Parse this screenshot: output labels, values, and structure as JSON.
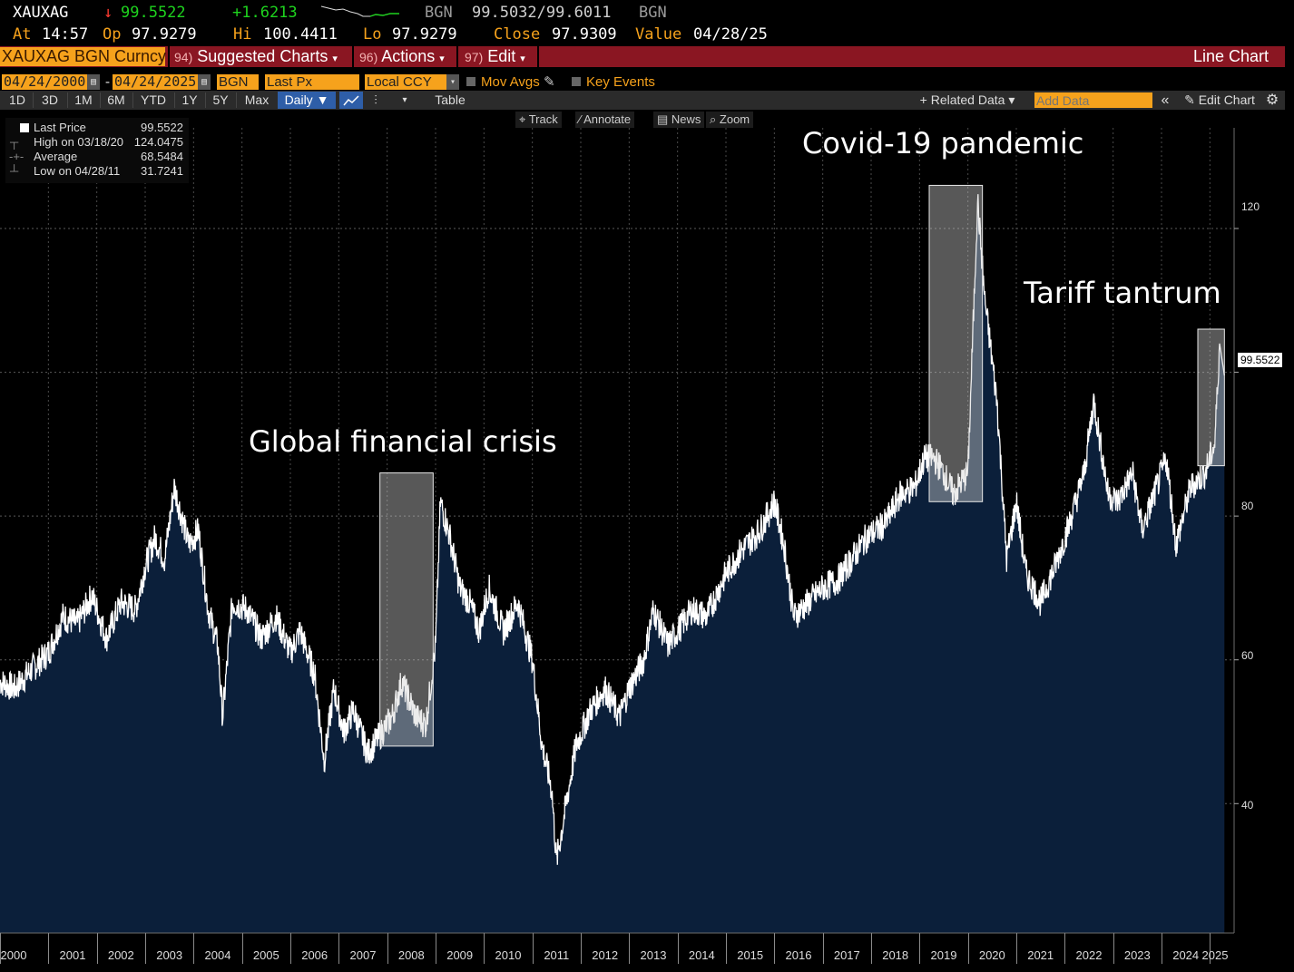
{
  "quote": {
    "ticker": "XAUXAG",
    "arrow": "↓",
    "last": "99.5522",
    "change": "+1.6213",
    "source1": "BGN",
    "bid_ask": "99.5032/99.6011",
    "source2": "BGN",
    "at_label": "At",
    "time": "14:57",
    "open_label": "Op",
    "open": "97.9279",
    "hi_label": "Hi",
    "hi": "100.4411",
    "lo_label": "Lo",
    "lo": "97.9279",
    "close_label": "Close",
    "close": "97.9309",
    "value_label": "Value",
    "value_date": "04/28/25"
  },
  "menubar": {
    "security": "XAUXAG BGN Curncy",
    "suggested_num": "94)",
    "suggested": "Suggested Charts",
    "actions_num": "96)",
    "actions": "Actions",
    "edit_num": "97)",
    "edit": "Edit",
    "chart_type": "Line Chart"
  },
  "controls": {
    "start_date": "04/24/2000",
    "dash": "-",
    "end_date": "04/24/2025",
    "source": "BGN",
    "field": "Last Px",
    "currency": "Local CCY",
    "mov_avgs": "Mov Avgs",
    "key_events": "Key Events"
  },
  "periods": [
    "1D",
    "3D",
    "1M",
    "6M",
    "YTD",
    "1Y",
    "5Y",
    "Max"
  ],
  "frequency": "Daily ▼",
  "table_label": "Table",
  "related_data": "+ Related Data ▾",
  "add_data_placeholder": "Add Data",
  "edit_chart": "Edit Chart",
  "tools": {
    "track": "Track",
    "annotate": "Annotate",
    "news": "News",
    "zoom": "Zoom"
  },
  "legend": {
    "last_label": "Last Price",
    "last_value": "99.5522",
    "high_label": "High on 03/18/20",
    "high_value": "124.0475",
    "avg_label": "Average",
    "avg_value": "68.5484",
    "low_label": "Low on 04/28/11",
    "low_value": "31.7241"
  },
  "colors": {
    "area": "#0b1f3a",
    "line": "#ffffff",
    "accent": "#f6a21c",
    "bar": "#8a1622"
  },
  "chart_data": {
    "type": "area",
    "title": "XAUXAG BGN Curncy",
    "ylim": [
      22,
      134
    ],
    "yticks": [
      40,
      60,
      80,
      120
    ],
    "last_price_label": "99.5522",
    "x_years": [
      "2000",
      "2001",
      "2002",
      "2003",
      "2004",
      "2005",
      "2006",
      "2007",
      "2008",
      "2009",
      "2010",
      "2011",
      "2012",
      "2013",
      "2014",
      "2015",
      "2016",
      "2017",
      "2018",
      "2019",
      "2020",
      "2021",
      "2022",
      "2023",
      "2024",
      "2025"
    ],
    "series": [
      {
        "name": "Last Price",
        "points": [
          [
            2000.0,
            57
          ],
          [
            2000.3,
            56
          ],
          [
            2000.7,
            59
          ],
          [
            2001.0,
            61
          ],
          [
            2001.3,
            66
          ],
          [
            2001.6,
            65
          ],
          [
            2001.9,
            69
          ],
          [
            2002.2,
            63
          ],
          [
            2002.5,
            68
          ],
          [
            2002.8,
            67
          ],
          [
            2003.0,
            73
          ],
          [
            2003.2,
            77
          ],
          [
            2003.4,
            74
          ],
          [
            2003.6,
            84
          ],
          [
            2003.9,
            76
          ],
          [
            2004.1,
            78
          ],
          [
            2004.3,
            67
          ],
          [
            2004.5,
            62
          ],
          [
            2004.6,
            52
          ],
          [
            2004.8,
            68
          ],
          [
            2005.1,
            67
          ],
          [
            2005.4,
            63
          ],
          [
            2005.7,
            66
          ],
          [
            2006.0,
            61
          ],
          [
            2006.2,
            64
          ],
          [
            2006.5,
            58
          ],
          [
            2006.7,
            46
          ],
          [
            2006.9,
            56
          ],
          [
            2007.1,
            50
          ],
          [
            2007.3,
            53
          ],
          [
            2007.6,
            47
          ],
          [
            2007.9,
            50
          ],
          [
            2008.1,
            52
          ],
          [
            2008.3,
            57
          ],
          [
            2008.6,
            52
          ],
          [
            2008.8,
            51
          ],
          [
            2009.0,
            62
          ],
          [
            2009.1,
            82
          ],
          [
            2009.3,
            77
          ],
          [
            2009.5,
            70
          ],
          [
            2009.7,
            68
          ],
          [
            2009.9,
            64
          ],
          [
            2010.1,
            70
          ],
          [
            2010.4,
            64
          ],
          [
            2010.7,
            68
          ],
          [
            2011.0,
            60
          ],
          [
            2011.2,
            48
          ],
          [
            2011.4,
            42
          ],
          [
            2011.5,
            32
          ],
          [
            2011.7,
            40
          ],
          [
            2011.9,
            48
          ],
          [
            2012.2,
            53
          ],
          [
            2012.5,
            56
          ],
          [
            2012.8,
            52
          ],
          [
            2013.0,
            56
          ],
          [
            2013.3,
            60
          ],
          [
            2013.5,
            67
          ],
          [
            2013.8,
            62
          ],
          [
            2014.0,
            64
          ],
          [
            2014.3,
            67
          ],
          [
            2014.6,
            66
          ],
          [
            2015.0,
            72
          ],
          [
            2015.3,
            75
          ],
          [
            2015.7,
            78
          ],
          [
            2016.0,
            82
          ],
          [
            2016.2,
            76
          ],
          [
            2016.4,
            66
          ],
          [
            2016.7,
            68
          ],
          [
            2017.0,
            70
          ],
          [
            2017.3,
            71
          ],
          [
            2017.6,
            74
          ],
          [
            2017.9,
            77
          ],
          [
            2018.3,
            79
          ],
          [
            2018.6,
            83
          ],
          [
            2018.9,
            84
          ],
          [
            2019.1,
            88
          ],
          [
            2019.3,
            88
          ],
          [
            2019.5,
            86
          ],
          [
            2019.7,
            83
          ],
          [
            2020.0,
            86
          ],
          [
            2020.2,
            124
          ],
          [
            2020.35,
            110
          ],
          [
            2020.6,
            96
          ],
          [
            2020.8,
            74
          ],
          [
            2021.0,
            82
          ],
          [
            2021.2,
            72
          ],
          [
            2021.5,
            68
          ],
          [
            2021.8,
            73
          ],
          [
            2022.1,
            79
          ],
          [
            2022.4,
            86
          ],
          [
            2022.6,
            96
          ],
          [
            2022.9,
            83
          ],
          [
            2023.1,
            82
          ],
          [
            2023.4,
            86
          ],
          [
            2023.6,
            78
          ],
          [
            2023.9,
            84
          ],
          [
            2024.1,
            88
          ],
          [
            2024.3,
            76
          ],
          [
            2024.6,
            84
          ],
          [
            2024.9,
            86
          ],
          [
            2025.1,
            90
          ],
          [
            2025.2,
            104
          ],
          [
            2025.3,
            99.55
          ]
        ]
      }
    ],
    "annotations": [
      {
        "text": "Global financial crisis",
        "x0": 2007.85,
        "x1": 2008.95,
        "y0": 48,
        "y1": 86
      },
      {
        "text": "Covid-19 pandemic",
        "x0": 2019.2,
        "x1": 2020.3,
        "y0": 82,
        "y1": 126
      },
      {
        "text": "Tariff tantrum",
        "x0": 2024.75,
        "x1": 2025.3,
        "y0": 87,
        "y1": 106
      }
    ]
  }
}
